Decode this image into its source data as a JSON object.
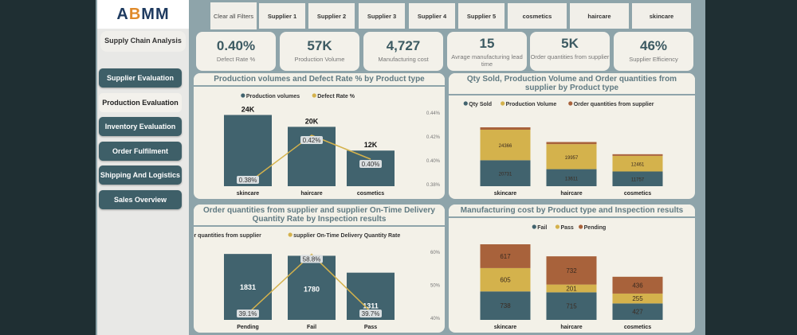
{
  "logo": "ABMM",
  "sidebar": {
    "subtitle": "Supply Chain Analysis",
    "items": [
      {
        "label": "Supplier Evaluation",
        "active": false
      },
      {
        "label": "Production Evaluation",
        "active": true
      },
      {
        "label": "Inventory Evaluation",
        "active": false
      },
      {
        "label": "Order Fulfilment",
        "active": false
      },
      {
        "label": "Shipping And Logistics",
        "active": false
      },
      {
        "label": "Sales Overview",
        "active": false
      }
    ]
  },
  "filters": [
    "Clear all Filters",
    "Supplier 1",
    "Supplier 2",
    "Supplier 3",
    "Supplier 4",
    "Supplier 5",
    "cosmetics",
    "haircare",
    "skincare"
  ],
  "kpis": [
    {
      "value": "0.40%",
      "label": "Defect Rate %"
    },
    {
      "value": "57K",
      "label": "Production Volume"
    },
    {
      "value": "4,727",
      "label": "Manufacturing cost"
    },
    {
      "value": "15",
      "label": "Avrage manufacturing lead time"
    },
    {
      "value": "5K",
      "label": "Order quantities from supplier"
    },
    {
      "value": "46%",
      "label": "Supplier Efficiency"
    }
  ],
  "colors": {
    "teal": "#41636e",
    "gold": "#d4b24c",
    "rust": "#a8623b"
  },
  "chart_data": [
    {
      "type": "bar+line",
      "title": "Production volumes and Defect Rate % by Product type",
      "categories": [
        "skincare",
        "haircare",
        "cosmetics"
      ],
      "series": [
        {
          "name": "Production volumes",
          "type": "bar",
          "values": [
            24000,
            20000,
            12000
          ],
          "labels": [
            "24K",
            "20K",
            "12K"
          ]
        },
        {
          "name": "Defect Rate %",
          "type": "line",
          "values": [
            0.38,
            0.42,
            0.4
          ],
          "labels": [
            "0.38%",
            "0.42%",
            "0.40%"
          ]
        }
      ],
      "y2ticks": [
        "0.44%",
        "0.42%",
        "0.40%",
        "0.38%"
      ],
      "y2lim": [
        0.38,
        0.44
      ],
      "legend": "top"
    },
    {
      "type": "stacked-bar",
      "title": "Qty Sold, Production Volume and Order quantities from supplier by Product type",
      "categories": [
        "skincare",
        "haircare",
        "cosmetics"
      ],
      "series": [
        {
          "name": "Qty Sold",
          "values": [
            20731,
            13611,
            11757
          ]
        },
        {
          "name": "Production Volume",
          "values": [
            24366,
            19957,
            12461
          ]
        },
        {
          "name": "Order quantities from supplier",
          "values": [
            1900,
            1700,
            1300
          ]
        }
      ],
      "label_series": [
        0,
        1
      ],
      "legend": "top"
    },
    {
      "type": "bar+line",
      "title": "Order quantities from supplier and supplier On-Time Delivery Quantity Rate by Inspection results",
      "categories": [
        "Pending",
        "Fail",
        "Pass"
      ],
      "series": [
        {
          "name": "Order quantities from supplier",
          "type": "bar",
          "values": [
            1831,
            1780,
            1311
          ],
          "labels": [
            "1831",
            "1780",
            "1311"
          ]
        },
        {
          "name": "supplier On-Time Delivery Quantity Rate",
          "type": "line",
          "values": [
            39.1,
            58.8,
            39.7
          ],
          "labels": [
            "39.1%",
            "58.8%",
            "39.7%"
          ]
        }
      ],
      "y2ticks": [
        "60%",
        "50%",
        "40%"
      ],
      "y2lim": [
        38,
        60
      ],
      "legend": "top"
    },
    {
      "type": "stacked-bar",
      "title": "Manufacturing cost by Product type and Inspection results",
      "categories": [
        "skincare",
        "haircare",
        "cosmetics"
      ],
      "series": [
        {
          "name": "Fail",
          "values": [
            738,
            715,
            427
          ]
        },
        {
          "name": "Pass",
          "values": [
            605,
            201,
            255
          ]
        },
        {
          "name": "Pending",
          "values": [
            617,
            732,
            436
          ]
        }
      ],
      "label_series": [
        0,
        1,
        2
      ],
      "legend": "top"
    }
  ]
}
